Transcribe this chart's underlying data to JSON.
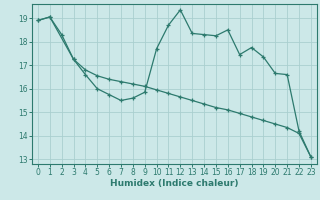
{
  "xlabel": "Humidex (Indice chaleur)",
  "bg_color": "#cce8e8",
  "grid_color": "#aacfcf",
  "line_color": "#2d7a6e",
  "xlim": [
    -0.5,
    23.5
  ],
  "ylim": [
    12.8,
    19.6
  ],
  "yticks": [
    13,
    14,
    15,
    16,
    17,
    18,
    19
  ],
  "xticks": [
    0,
    1,
    2,
    3,
    4,
    5,
    6,
    7,
    8,
    9,
    10,
    11,
    12,
    13,
    14,
    15,
    16,
    17,
    18,
    19,
    20,
    21,
    22,
    23
  ],
  "series1_x": [
    0,
    1,
    2,
    3,
    4,
    5,
    6,
    7,
    8,
    9,
    10,
    11,
    12,
    13,
    14,
    15,
    16,
    17,
    18,
    19,
    20,
    21,
    22,
    23
  ],
  "series1_y": [
    18.9,
    19.05,
    18.3,
    17.25,
    16.6,
    16.0,
    15.75,
    15.5,
    15.6,
    15.85,
    17.7,
    18.7,
    19.35,
    18.35,
    18.3,
    18.25,
    18.5,
    17.45,
    17.75,
    17.35,
    16.65,
    16.6,
    14.2,
    13.1
  ],
  "series2_x": [
    0,
    1,
    3,
    4,
    5,
    6,
    7,
    8,
    9,
    10,
    11,
    12,
    13,
    14,
    15,
    16,
    17,
    18,
    19,
    20,
    21,
    22,
    23
  ],
  "series2_y": [
    18.9,
    19.05,
    17.25,
    16.8,
    16.55,
    16.4,
    16.3,
    16.2,
    16.1,
    15.95,
    15.8,
    15.65,
    15.5,
    15.35,
    15.2,
    15.1,
    14.95,
    14.8,
    14.65,
    14.5,
    14.35,
    14.1,
    13.1
  ]
}
